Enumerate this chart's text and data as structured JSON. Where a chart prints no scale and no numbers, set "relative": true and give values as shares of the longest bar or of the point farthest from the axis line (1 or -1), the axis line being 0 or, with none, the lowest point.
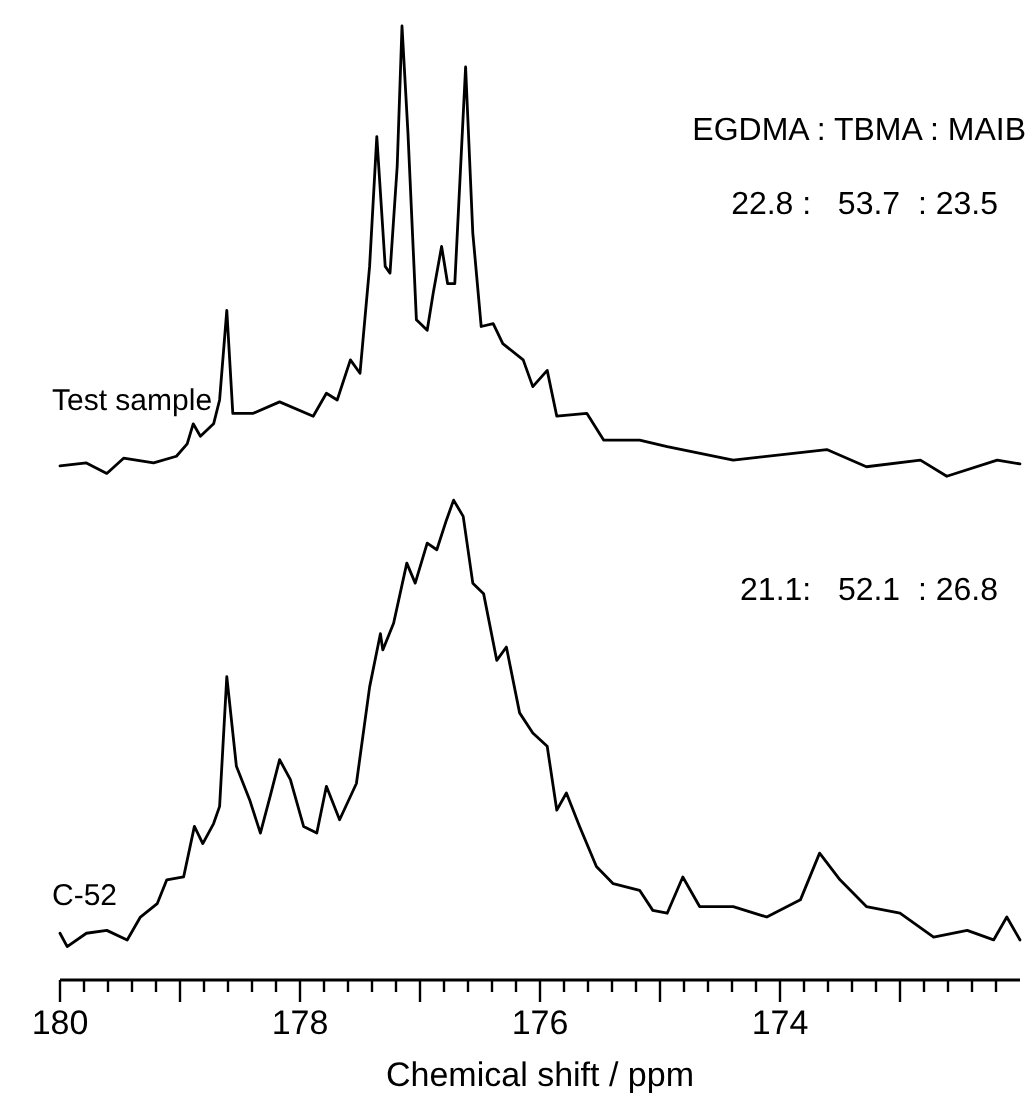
{
  "chart_data": {
    "type": "line",
    "relative": true,
    "xlim": [
      180,
      172
    ],
    "xlabel": "Chemical shift / ppm",
    "tick_labels": "x",
    "annotations": [
      "EGDMA : TBMA : MAIB",
      "22.8 :   53.7  : 23.5",
      "21.1:   52.1  : 26.8"
    ],
    "xticks": [
      180,
      {
        "value": 179.8,
        "label": null
      },
      {
        "value": 179.6,
        "label": null
      },
      {
        "value": 179.4,
        "label": null
      },
      {
        "value": 179.2,
        "label": null
      },
      {
        "value": 179,
        "label": null
      },
      {
        "value": 178.8,
        "label": null
      },
      {
        "value": 178.6,
        "label": null
      },
      {
        "value": 178.4,
        "label": null
      },
      {
        "value": 178.2,
        "label": null
      },
      178,
      {
        "value": 177.8,
        "label": null
      },
      {
        "value": 177.6,
        "label": null
      },
      {
        "value": 177.4,
        "label": null
      },
      {
        "value": 177.2,
        "label": null
      },
      {
        "value": 177,
        "label": null
      },
      {
        "value": 176.8,
        "label": null
      },
      {
        "value": 176.6,
        "label": null
      },
      {
        "value": 176.4,
        "label": null
      },
      {
        "value": 176.2,
        "label": null
      },
      176,
      {
        "value": 175.8,
        "label": null
      },
      {
        "value": 175.6,
        "label": null
      },
      {
        "value": 175.4,
        "label": null
      },
      {
        "value": 175.2,
        "label": null
      },
      {
        "value": 175,
        "label": null
      },
      {
        "value": 174.8,
        "label": null
      },
      {
        "value": 174.6,
        "label": null
      },
      {
        "value": 174.4,
        "label": null
      },
      {
        "value": 174.2,
        "label": null
      },
      174,
      {
        "value": 173.8,
        "label": null
      },
      {
        "value": 173.6,
        "label": null
      },
      {
        "value": 173.4,
        "label": null
      },
      {
        "value": 173.2,
        "label": null
      },
      {
        "value": 173,
        "label": null
      },
      {
        "value": 172.8,
        "label": null
      },
      {
        "value": 172.6,
        "label": null
      },
      {
        "value": 172.4,
        "label": null
      },
      {
        "value": 172.2,
        "label": null
      }
    ],
    "series": [
      {
        "name": "Test sample",
        "color": "#000000",
        "x": [
          180,
          179.78,
          179.61,
          179.47,
          179.22,
          179.03,
          178.94,
          178.89,
          178.83,
          178.72,
          178.67,
          178.61,
          178.56,
          178.39,
          178.17,
          177.89,
          177.78,
          177.69,
          177.58,
          177.5,
          177.42,
          177.36,
          177.29,
          177.25,
          177.19,
          177.15,
          177.1,
          177.03,
          176.94,
          176.89,
          176.82,
          176.77,
          176.71,
          176.62,
          176.56,
          176.49,
          176.39,
          176.31,
          176.14,
          176.06,
          175.94,
          175.86,
          175.61,
          175.47,
          175.17,
          174.94,
          174.39,
          173.61,
          173.28,
          172.83,
          172.61,
          172.19,
          172.0
        ],
        "values": [
          0.539,
          0.542,
          0.531,
          0.547,
          0.542,
          0.549,
          0.562,
          0.583,
          0.57,
          0.583,
          0.608,
          0.702,
          0.594,
          0.594,
          0.606,
          0.591,
          0.615,
          0.608,
          0.65,
          0.636,
          0.748,
          0.884,
          0.748,
          0.741,
          0.853,
          1,
          0.887,
          0.692,
          0.681,
          0.72,
          0.769,
          0.73,
          0.73,
          0.957,
          0.783,
          0.685,
          0.688,
          0.667,
          0.65,
          0.622,
          0.639,
          0.591,
          0.594,
          0.566,
          0.566,
          0.559,
          0.545,
          0.556,
          0.538,
          0.545,
          0.528,
          0.545,
          0.541
        ]
      },
      {
        "name": "C-52",
        "color": "#000000",
        "x": [
          180,
          179.94,
          179.78,
          179.61,
          179.44,
          179.33,
          179.19,
          179.11,
          178.97,
          178.88,
          178.81,
          178.72,
          178.67,
          178.61,
          178.53,
          178.42,
          178.33,
          178.25,
          178.17,
          178.08,
          177.97,
          177.86,
          177.78,
          177.67,
          177.53,
          177.42,
          177.33,
          177.31,
          177.22,
          177.11,
          177.04,
          176.94,
          176.86,
          176.78,
          176.72,
          176.64,
          176.56,
          176.47,
          176.36,
          176.28,
          176.17,
          176.06,
          175.94,
          175.86,
          175.78,
          175.67,
          175.53,
          175.39,
          175.17,
          175.06,
          174.94,
          174.81,
          174.67,
          174.39,
          174.11,
          173.83,
          173.67,
          173.5,
          173.28,
          173.0,
          172.72,
          172.44,
          172.22,
          172.11,
          172.0
        ],
        "values": [
          0.049,
          0.035,
          0.049,
          0.052,
          0.042,
          0.066,
          0.08,
          0.105,
          0.108,
          0.161,
          0.143,
          0.164,
          0.182,
          0.318,
          0.224,
          0.189,
          0.154,
          0.192,
          0.231,
          0.21,
          0.161,
          0.154,
          0.203,
          0.168,
          0.206,
          0.307,
          0.363,
          0.346,
          0.374,
          0.437,
          0.416,
          0.458,
          0.451,
          0.482,
          0.503,
          0.486,
          0.416,
          0.405,
          0.335,
          0.349,
          0.28,
          0.259,
          0.245,
          0.178,
          0.196,
          0.161,
          0.119,
          0.101,
          0.094,
          0.073,
          0.07,
          0.108,
          0.077,
          0.077,
          0.066,
          0.084,
          0.133,
          0.105,
          0.077,
          0.07,
          0.045,
          0.052,
          0.042,
          0.066,
          0.042
        ]
      }
    ]
  }
}
